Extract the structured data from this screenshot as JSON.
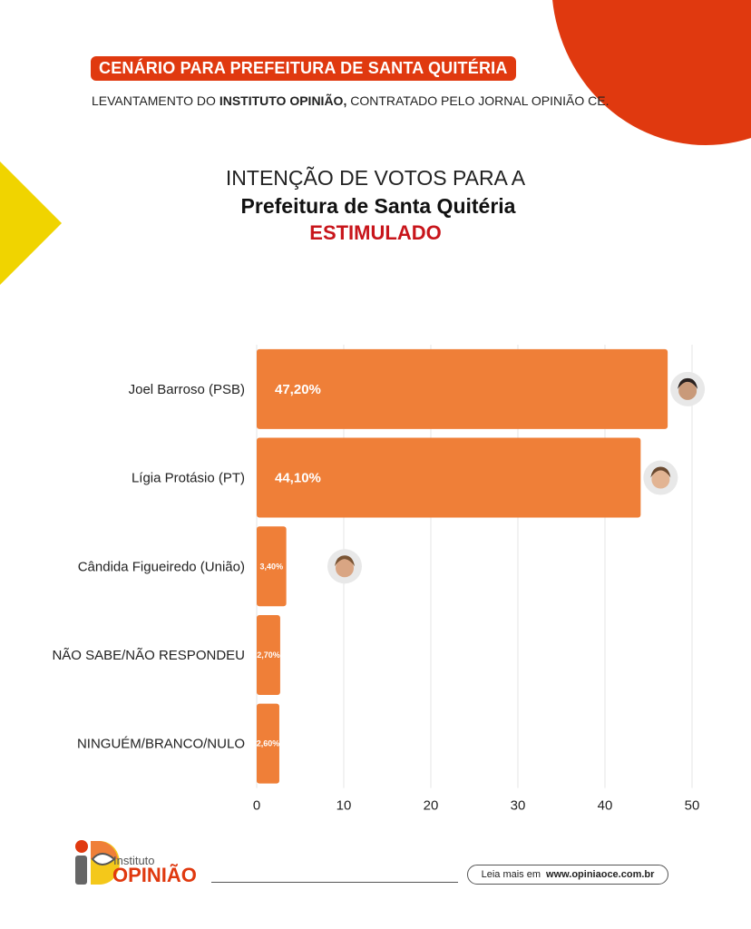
{
  "header": {
    "badge": "CENÁRIO PARA PREFEITURA DE SANTA QUITÉRIA",
    "subtitle_pre": "LEVANTAMENTO DO",
    "subtitle_bold": "INSTITUTO OPINIÃO,",
    "subtitle_post": "CONTRATADO PELO JORNAL OPINIÃO CE."
  },
  "chart_data": {
    "type": "bar",
    "orientation": "horizontal",
    "title": "INTENÇÃO DE VOTOS PARA A",
    "subtitle": "Prefeitura de Santa Quitéria",
    "scenario": "ESTIMULADO",
    "categories": [
      "Joel Barroso (PSB)",
      "Lígia Protásio (PT)",
      "Cândida Figueiredo (União)",
      "NÃO SABE/NÃO RESPONDEU",
      "NINGUÉM/BRANCO/NULO"
    ],
    "values": [
      47.2,
      44.1,
      3.4,
      2.7,
      2.6
    ],
    "data_labels": [
      "47,20%",
      "44,10%",
      "3,40%",
      "2,70%",
      "2,60%"
    ],
    "xlim": [
      0,
      50
    ],
    "xticks": [
      0,
      10,
      20,
      30,
      40,
      50
    ],
    "xtick_labels": [
      "0",
      "10",
      "20",
      "30",
      "40",
      "50"
    ],
    "grid": true,
    "bar_color": "#ef7f38",
    "avatars": [
      true,
      true,
      true,
      false,
      false
    ]
  },
  "footer": {
    "logo_small": "Instituto",
    "logo_big": "OPINIÃO",
    "read_more": "Leia mais em",
    "url": "www.opiniaoce.com.br"
  }
}
